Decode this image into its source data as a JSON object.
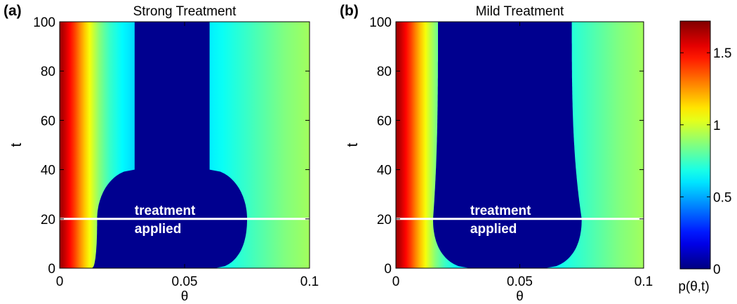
{
  "chart_data": [
    {
      "type": "heatmap",
      "panel_label": "(a)",
      "title": "Strong Treatment",
      "xlabel": "θ",
      "ylabel": "t",
      "xlim": [
        0,
        0.1
      ],
      "ylim": [
        0,
        100
      ],
      "xticks": [
        "0",
        "0.05",
        "0.1"
      ],
      "yticks": [
        "0",
        "20",
        "40",
        "60",
        "80",
        "100"
      ],
      "annotation": [
        "treatment",
        "applied"
      ],
      "treatment_line_t": 20,
      "depleted_region": {
        "core_theta": [
          0.03,
          0.06
        ],
        "bulge_theta_at_t0": [
          0.013,
          0.062
        ],
        "bulge_theta_at_treatment": [
          0.015,
          0.075
        ],
        "bulge_theta_at_t40": [
          0.03,
          0.06
        ],
        "bulge_peak_t": 20,
        "bulge_end_t": 40
      }
    },
    {
      "type": "heatmap",
      "panel_label": "(b)",
      "title": "Mild Treatment",
      "xlabel": "θ",
      "ylabel": "t",
      "xlim": [
        0,
        0.1
      ],
      "ylim": [
        0,
        100
      ],
      "xticks": [
        "0",
        "0.05",
        "0.1"
      ],
      "yticks": [
        "0",
        "20",
        "40",
        "60",
        "80",
        "100"
      ],
      "annotation": [
        "treatment",
        "applied"
      ],
      "treatment_line_t": 20,
      "depleted_region": {
        "bulge_theta_at_t0": [
          0.03,
          0.06
        ],
        "theta_at_treatment": [
          0.015,
          0.075
        ],
        "theta_at_t100": [
          0.017,
          0.071
        ]
      }
    }
  ],
  "colorbar": {
    "label": "p(θ,t)",
    "ticks": [
      "0",
      "0.5",
      "1",
      "1.5"
    ],
    "range": [
      0,
      1.72
    ],
    "colormap": "jet"
  },
  "profile": {
    "theta": [
      0,
      0.002,
      0.004,
      0.006,
      0.008,
      0.01,
      0.012,
      0.014,
      0.016,
      0.018,
      0.02,
      0.025,
      0.03,
      0.035,
      0.04,
      0.05,
      0.06,
      0.065,
      0.07,
      0.075,
      0.08,
      0.085,
      0.09,
      0.095,
      0.1
    ],
    "p": [
      1.68,
      1.6,
      1.5,
      1.4,
      1.28,
      1.17,
      1.06,
      0.96,
      0.87,
      0.8,
      0.74,
      0.64,
      0.58,
      0.56,
      0.56,
      0.58,
      0.62,
      0.66,
      0.7,
      0.74,
      0.78,
      0.82,
      0.86,
      0.89,
      0.92
    ]
  },
  "colors": {
    "depleted": "#00008f",
    "line": "#ffffff"
  }
}
